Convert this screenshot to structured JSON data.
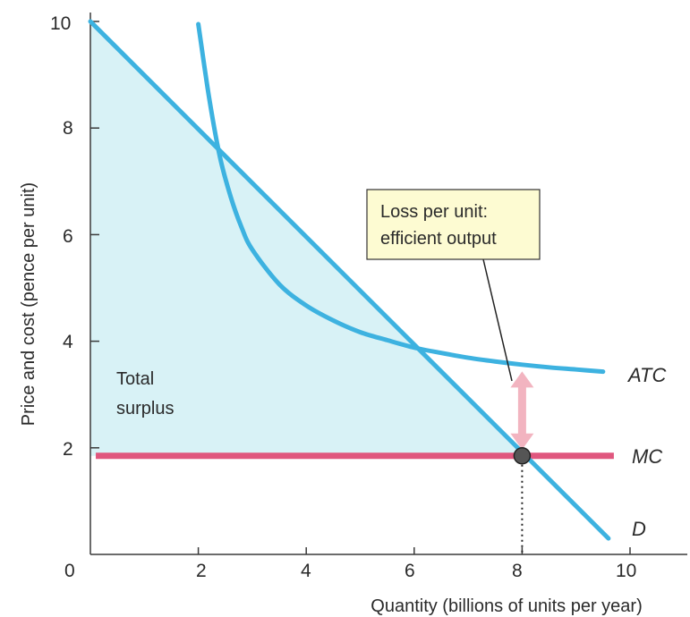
{
  "chart_data": {
    "type": "line",
    "xlabel": "Quantity (billions of units per year)",
    "ylabel": "Price and cost (pence per unit)",
    "xlim": [
      0,
      11
    ],
    "ylim": [
      0,
      10
    ],
    "x_ticks": [
      0,
      2,
      4,
      6,
      8,
      10
    ],
    "y_ticks": [
      2,
      4,
      6,
      8,
      10
    ],
    "x_tick_labels": [
      "0",
      "2",
      "4",
      "6",
      "8",
      "10"
    ],
    "y_tick_labels": [
      "2",
      "4",
      "6",
      "8",
      "10"
    ],
    "series": [
      {
        "name": "D",
        "color": "#3db2e0",
        "x": [
          0,
          9.6
        ],
        "y": [
          10,
          0.3
        ]
      },
      {
        "name": "ATC",
        "color": "#3db2e0",
        "x": [
          2.0,
          2.2,
          2.4,
          2.6,
          2.8,
          3.0,
          3.5,
          4.0,
          4.5,
          5.0,
          5.5,
          6.0,
          6.5,
          7.0,
          7.5,
          8.0,
          8.5,
          9.0,
          9.5
        ],
        "y": [
          9.95,
          8.57,
          7.46,
          6.71,
          6.14,
          5.72,
          5.07,
          4.67,
          4.39,
          4.17,
          4.02,
          3.88,
          3.78,
          3.69,
          3.62,
          3.56,
          3.51,
          3.47,
          3.43
        ]
      },
      {
        "name": "MC",
        "color": "#e0577e",
        "x": [
          0.1,
          9.7
        ],
        "y": [
          1.85,
          1.85
        ]
      }
    ],
    "shaded_region": {
      "label": [
        "Total",
        "surplus"
      ],
      "color": "#d8f2f6",
      "polygon_x": [
        0,
        8,
        0
      ],
      "polygon_y": [
        10,
        1.85,
        1.85
      ]
    },
    "efficient_point": {
      "x": 8,
      "y": 1.85,
      "color": "#555555"
    },
    "loss_arrow": {
      "x": 8,
      "y_from": 2.0,
      "y_to": 3.4,
      "color": "#f2b4c0"
    },
    "callout": {
      "lines": [
        "Loss per unit:",
        "efficient output"
      ],
      "background": "#fdfbd2"
    },
    "grid": false
  }
}
